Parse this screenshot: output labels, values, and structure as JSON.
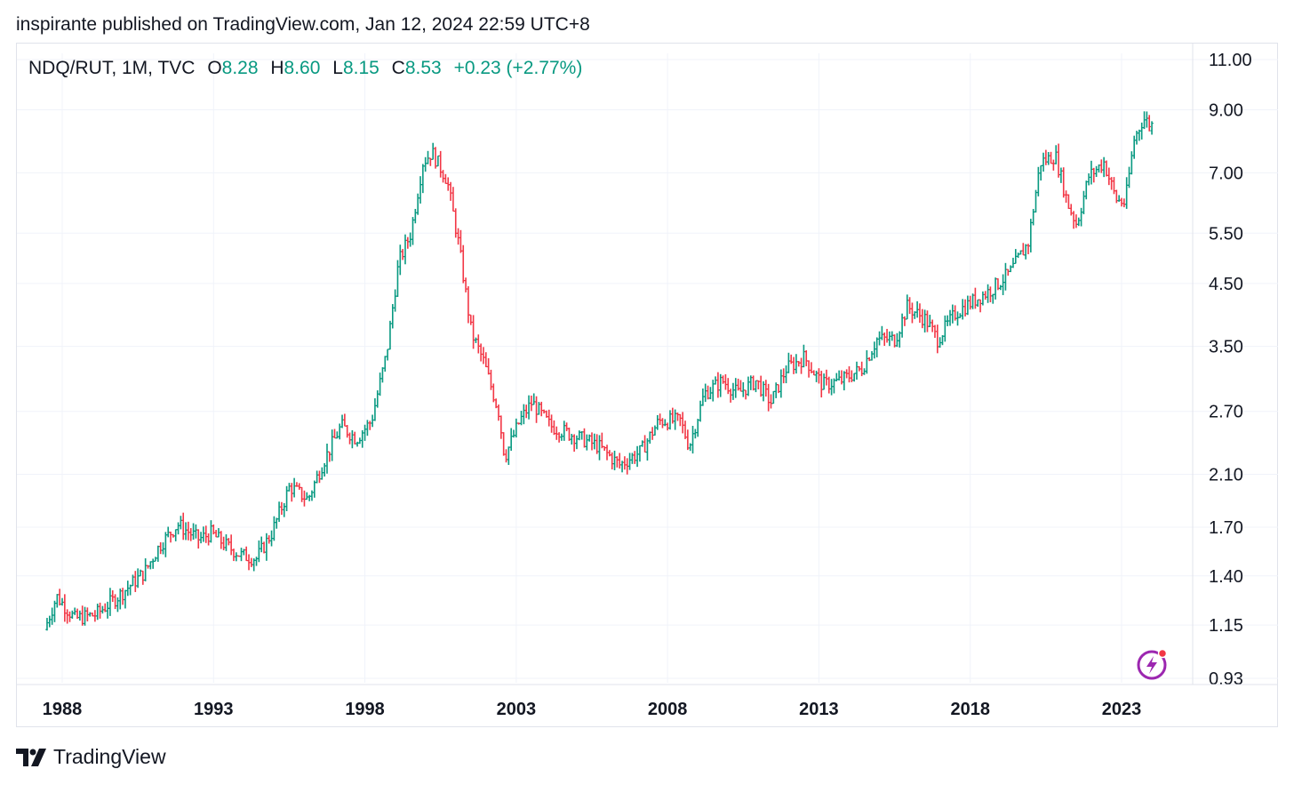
{
  "header": {
    "publish_text": "inspirante published on TradingView.com, Jan 12, 2024 22:59 UTC+8"
  },
  "legend": {
    "symbol": "NDQ/RUT, 1M, TVC",
    "open_label": "O",
    "open": "8.28",
    "high_label": "H",
    "high": "8.60",
    "low_label": "L",
    "low": "8.15",
    "close_label": "C",
    "close": "8.53",
    "change": "+0.23 (+2.77%)"
  },
  "footer": {
    "brand": "TradingView"
  },
  "colors": {
    "up": "#089981",
    "down": "#f23645",
    "grid": "#f0f3fa",
    "text": "#131722",
    "accent": "#9c27b0"
  },
  "icons": {
    "logo": "tradingview-logo-icon",
    "bolt": "lightning-bolt-icon"
  },
  "chart_data": {
    "type": "candlestick-bar",
    "interval": "1M",
    "y_scale": "log",
    "grid": true,
    "y_ticks": [
      "11.00",
      "9.00",
      "7.00",
      "5.50",
      "4.50",
      "3.50",
      "2.70",
      "2.10",
      "1.70",
      "1.40",
      "1.15",
      "0.93"
    ],
    "x_ticks": [
      "1988",
      "1993",
      "1998",
      "2003",
      "2008",
      "2013",
      "2018",
      "2023"
    ],
    "ylim": [
      0.93,
      11.0
    ],
    "xlim": [
      1987.0,
      2025.0
    ],
    "trend_points": [
      [
        1987.5,
        1.13
      ],
      [
        1987.9,
        1.29
      ],
      [
        1988.5,
        1.18
      ],
      [
        1989.2,
        1.2
      ],
      [
        1990.0,
        1.3
      ],
      [
        1990.8,
        1.42
      ],
      [
        1991.3,
        1.58
      ],
      [
        1991.9,
        1.72
      ],
      [
        1992.6,
        1.62
      ],
      [
        1993.0,
        1.66
      ],
      [
        1993.5,
        1.58
      ],
      [
        1994.0,
        1.52
      ],
      [
        1994.5,
        1.5
      ],
      [
        1995.0,
        1.66
      ],
      [
        1995.6,
        2.0
      ],
      [
        1996.2,
        1.9
      ],
      [
        1996.7,
        2.2
      ],
      [
        1997.3,
        2.55
      ],
      [
        1997.8,
        2.42
      ],
      [
        1998.3,
        2.6
      ],
      [
        1998.8,
        3.4
      ],
      [
        1999.2,
        4.9
      ],
      [
        1999.6,
        5.5
      ],
      [
        2000.0,
        7.3
      ],
      [
        2000.3,
        7.6
      ],
      [
        2000.8,
        6.8
      ],
      [
        2001.2,
        5.2
      ],
      [
        2001.6,
        3.7
      ],
      [
        2002.0,
        3.3
      ],
      [
        2002.5,
        2.7
      ],
      [
        2002.7,
        2.25
      ],
      [
        2003.2,
        2.6
      ],
      [
        2003.6,
        2.8
      ],
      [
        2004.2,
        2.55
      ],
      [
        2005.0,
        2.45
      ],
      [
        2005.8,
        2.35
      ],
      [
        2006.5,
        2.18
      ],
      [
        2007.2,
        2.3
      ],
      [
        2007.8,
        2.6
      ],
      [
        2008.5,
        2.6
      ],
      [
        2008.8,
        2.35
      ],
      [
        2009.3,
        2.9
      ],
      [
        2009.9,
        3.05
      ],
      [
        2010.4,
        2.9
      ],
      [
        2011.0,
        3.05
      ],
      [
        2011.5,
        2.8
      ],
      [
        2012.0,
        3.2
      ],
      [
        2012.6,
        3.35
      ],
      [
        2013.2,
        3.0
      ],
      [
        2013.8,
        3.05
      ],
      [
        2014.5,
        3.2
      ],
      [
        2015.0,
        3.6
      ],
      [
        2015.6,
        3.6
      ],
      [
        2016.0,
        4.1
      ],
      [
        2016.6,
        3.9
      ],
      [
        2017.0,
        3.6
      ],
      [
        2017.6,
        4.0
      ],
      [
        2018.2,
        4.2
      ],
      [
        2018.8,
        4.4
      ],
      [
        2019.4,
        4.7
      ],
      [
        2020.0,
        5.3
      ],
      [
        2020.4,
        7.3
      ],
      [
        2020.9,
        7.5
      ],
      [
        2021.3,
        6.2
      ],
      [
        2021.6,
        5.7
      ],
      [
        2022.0,
        6.9
      ],
      [
        2022.5,
        7.3
      ],
      [
        2022.9,
        6.3
      ],
      [
        2023.2,
        6.2
      ],
      [
        2023.5,
        8.0
      ],
      [
        2023.8,
        8.7
      ],
      [
        2024.0,
        8.53
      ]
    ],
    "last_bar": {
      "open": 8.28,
      "high": 8.6,
      "low": 8.15,
      "close": 8.53
    }
  }
}
